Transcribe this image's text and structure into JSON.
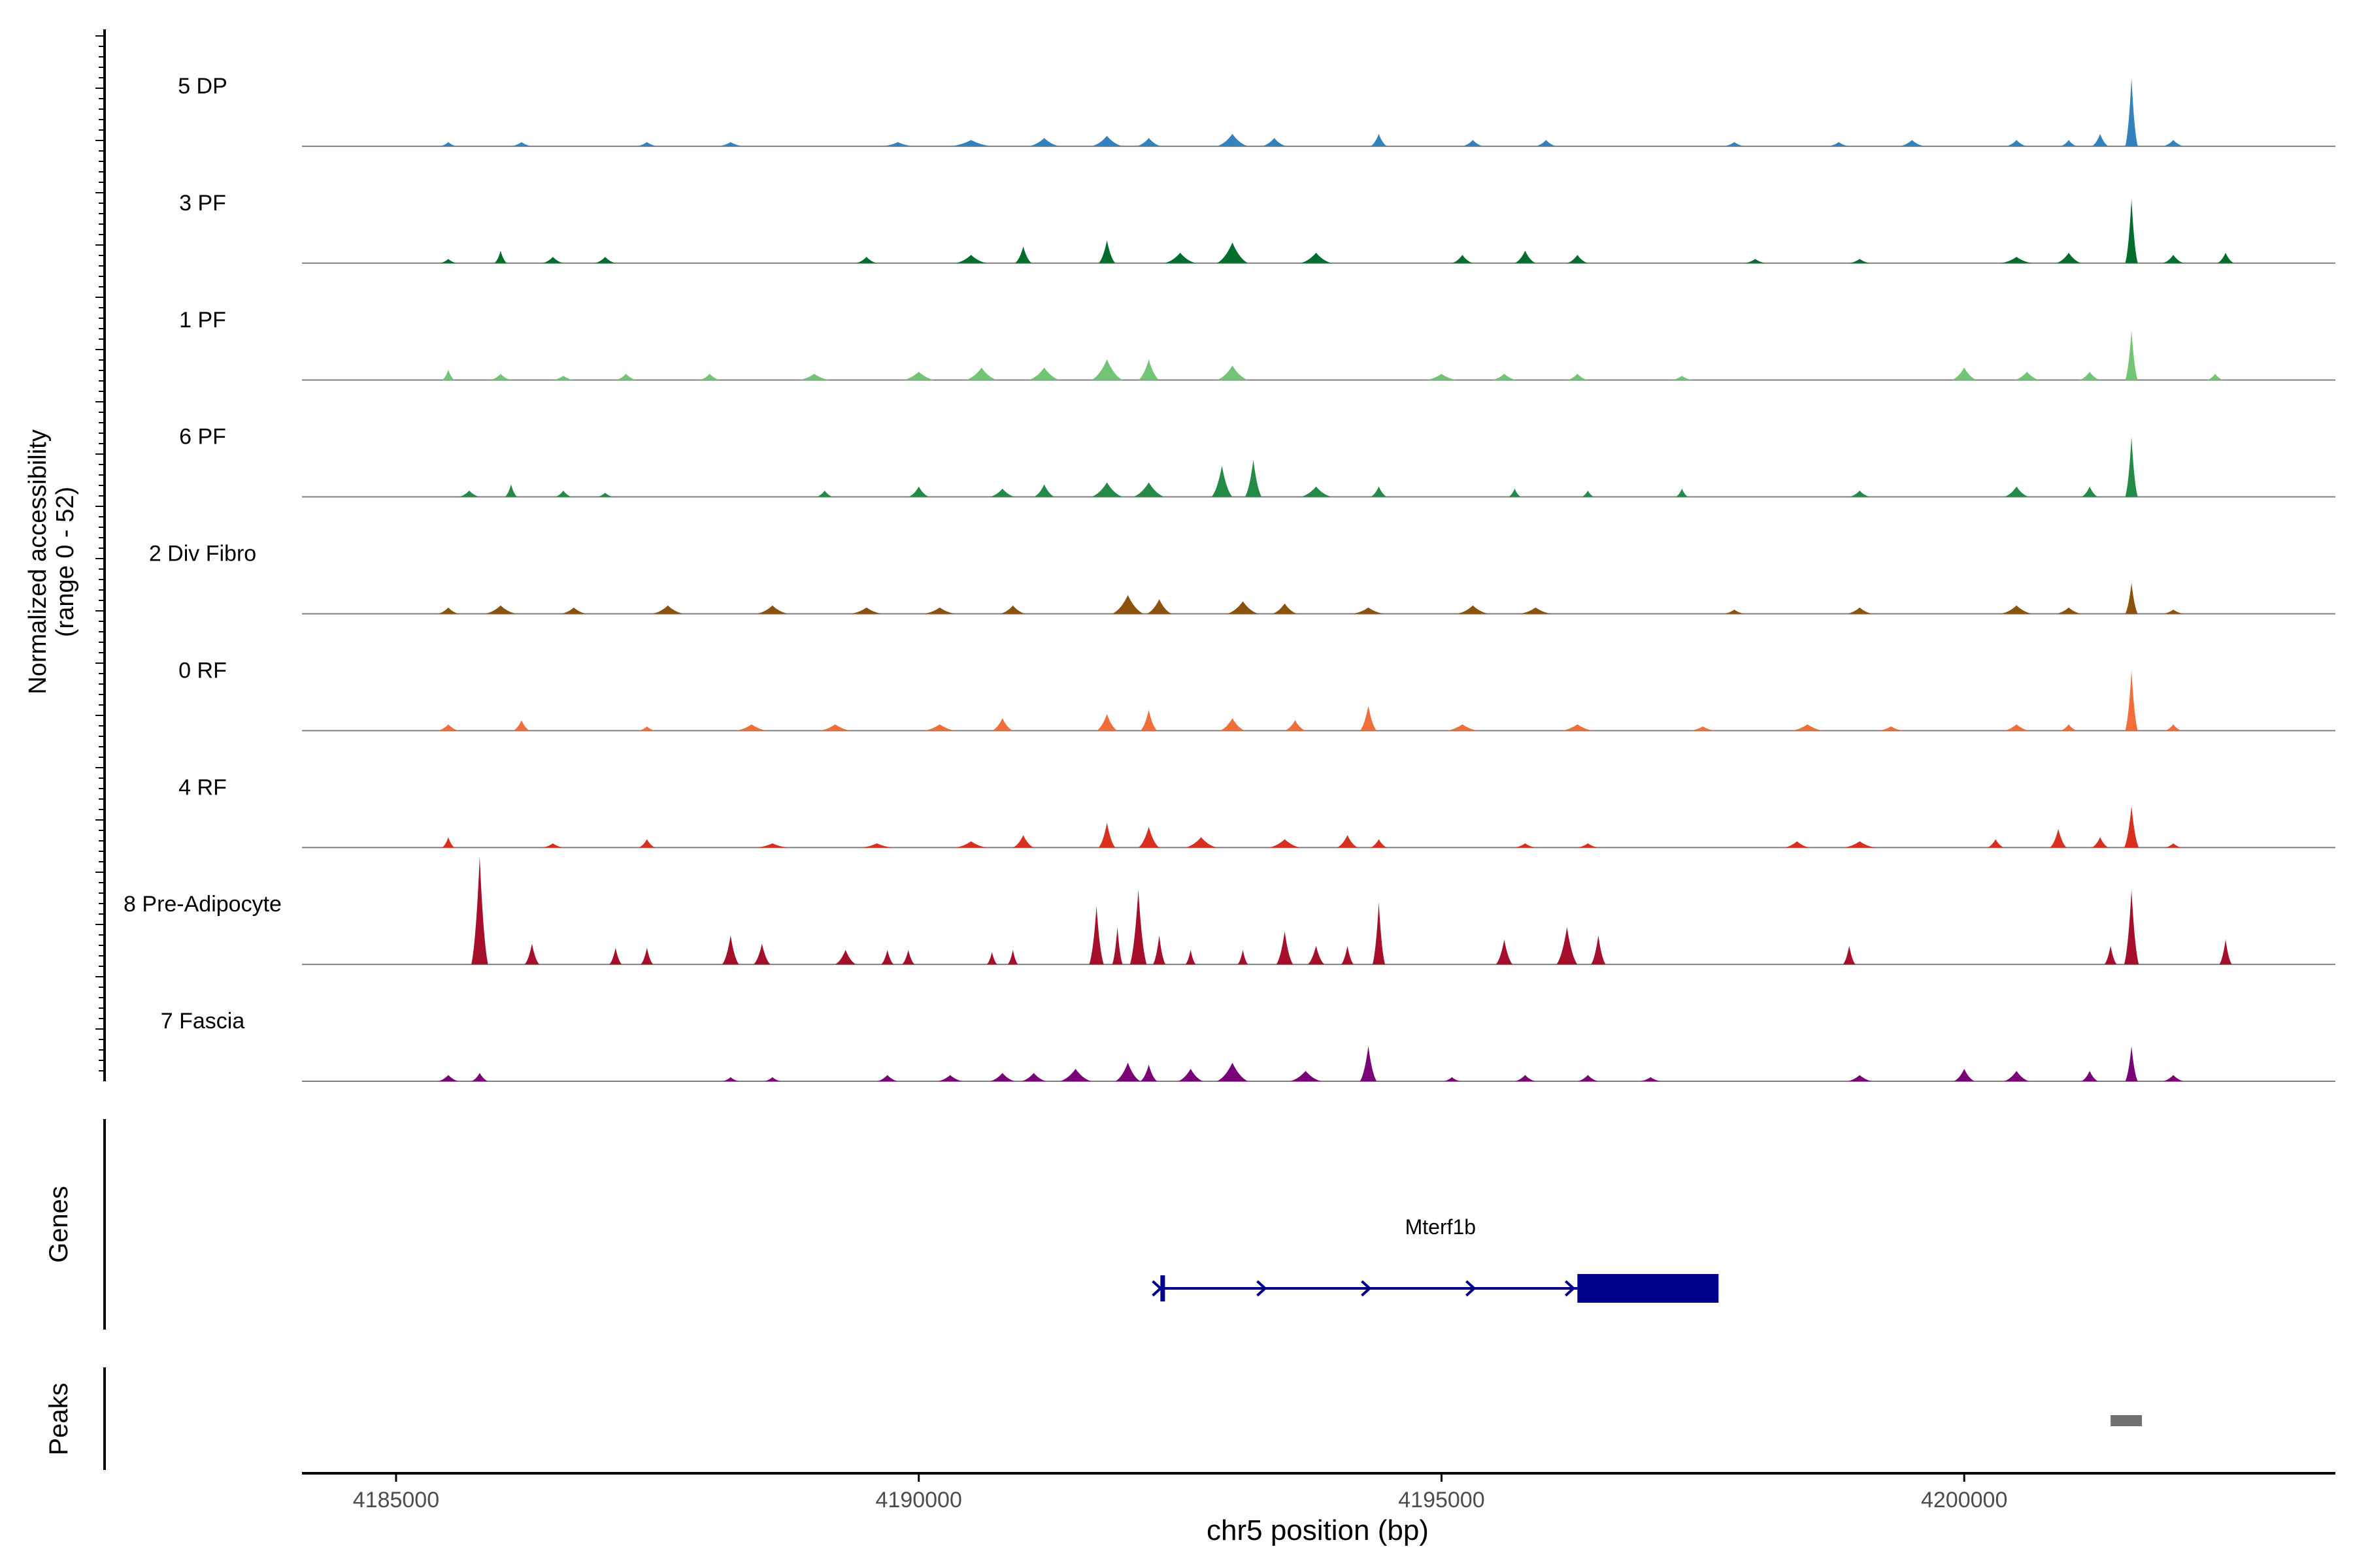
{
  "chart_data": {
    "type": "area",
    "title": "",
    "ylabel_line1": "Normalized accessibility",
    "ylabel_line2": "(range 0 - 52)",
    "xlabel": "chr5 position (bp)",
    "xlim": [
      4184100,
      4203550
    ],
    "ylim": [
      0,
      52
    ],
    "x_ticks": [
      "4185000",
      "4190000",
      "4195000",
      "4200000"
    ],
    "x_tick_values": [
      4185000,
      4190000,
      4195000,
      4200000
    ],
    "genes_label": "Genes",
    "peaks_label": "Peaks",
    "tracks": [
      {
        "name": "5 DP",
        "color": "#3182BD",
        "peaks": [
          [
            4185500,
            2,
            80
          ],
          [
            4186200,
            2,
            100
          ],
          [
            4187400,
            2,
            100
          ],
          [
            4188200,
            2,
            120
          ],
          [
            4189800,
            2,
            150
          ],
          [
            4190500,
            3,
            200
          ],
          [
            4191200,
            4,
            150
          ],
          [
            4191800,
            5,
            150
          ],
          [
            4192200,
            4,
            120
          ],
          [
            4193000,
            6,
            150
          ],
          [
            4193400,
            4,
            120
          ],
          [
            4194400,
            6,
            80
          ],
          [
            4195300,
            3,
            100
          ],
          [
            4196000,
            3,
            100
          ],
          [
            4197800,
            2,
            100
          ],
          [
            4198800,
            2,
            100
          ],
          [
            4199500,
            3,
            120
          ],
          [
            4200500,
            3,
            100
          ],
          [
            4201000,
            3,
            80
          ],
          [
            4201300,
            6,
            80
          ],
          [
            4201600,
            33,
            60
          ],
          [
            4202000,
            3,
            100
          ]
        ]
      },
      {
        "name": "3 PF",
        "color": "#006D2C",
        "peaks": [
          [
            4185500,
            2,
            80
          ],
          [
            4186000,
            6,
            60
          ],
          [
            4186500,
            3,
            100
          ],
          [
            4187000,
            3,
            100
          ],
          [
            4189500,
            3,
            100
          ],
          [
            4190500,
            4,
            150
          ],
          [
            4191000,
            8,
            80
          ],
          [
            4191800,
            11,
            80
          ],
          [
            4192500,
            5,
            150
          ],
          [
            4193000,
            10,
            150
          ],
          [
            4193800,
            5,
            150
          ],
          [
            4195200,
            4,
            100
          ],
          [
            4195800,
            6,
            100
          ],
          [
            4196300,
            4,
            100
          ],
          [
            4198000,
            2,
            100
          ],
          [
            4199000,
            2,
            100
          ],
          [
            4200500,
            3,
            150
          ],
          [
            4201000,
            5,
            120
          ],
          [
            4201600,
            31,
            60
          ],
          [
            4202000,
            4,
            100
          ],
          [
            4202500,
            5,
            80
          ]
        ]
      },
      {
        "name": "1 PF",
        "color": "#74C476",
        "peaks": [
          [
            4185500,
            5,
            60
          ],
          [
            4186000,
            3,
            100
          ],
          [
            4186600,
            2,
            100
          ],
          [
            4187200,
            3,
            100
          ],
          [
            4188000,
            3,
            100
          ],
          [
            4189000,
            3,
            150
          ],
          [
            4190000,
            4,
            150
          ],
          [
            4190600,
            6,
            150
          ],
          [
            4191200,
            6,
            150
          ],
          [
            4191800,
            10,
            150
          ],
          [
            4192200,
            10,
            100
          ],
          [
            4193000,
            7,
            150
          ],
          [
            4195000,
            3,
            150
          ],
          [
            4195600,
            3,
            120
          ],
          [
            4196300,
            3,
            100
          ],
          [
            4197300,
            2,
            100
          ],
          [
            4200000,
            6,
            120
          ],
          [
            4200600,
            4,
            120
          ],
          [
            4201200,
            4,
            100
          ],
          [
            4201600,
            24,
            60
          ],
          [
            4202400,
            3,
            80
          ]
        ]
      },
      {
        "name": "6 PF",
        "color": "#238B45",
        "peaks": [
          [
            4185700,
            3,
            100
          ],
          [
            4186100,
            6,
            60
          ],
          [
            4186600,
            3,
            80
          ],
          [
            4187000,
            2,
            80
          ],
          [
            4189100,
            3,
            80
          ],
          [
            4190000,
            5,
            100
          ],
          [
            4190800,
            4,
            120
          ],
          [
            4191200,
            6,
            100
          ],
          [
            4191800,
            7,
            150
          ],
          [
            4192200,
            7,
            150
          ],
          [
            4192900,
            15,
            100
          ],
          [
            4193200,
            18,
            80
          ],
          [
            4193800,
            5,
            150
          ],
          [
            4194400,
            5,
            80
          ],
          [
            4195700,
            4,
            60
          ],
          [
            4196400,
            3,
            60
          ],
          [
            4197300,
            4,
            60
          ],
          [
            4199000,
            3,
            100
          ],
          [
            4200500,
            5,
            120
          ],
          [
            4201200,
            5,
            80
          ],
          [
            4201600,
            29,
            60
          ]
        ]
      },
      {
        "name": "2 Div Fibro",
        "color": "#8C510A",
        "peaks": [
          [
            4185500,
            3,
            100
          ],
          [
            4186000,
            4,
            150
          ],
          [
            4186700,
            3,
            120
          ],
          [
            4187600,
            4,
            150
          ],
          [
            4188600,
            4,
            150
          ],
          [
            4189500,
            3,
            150
          ],
          [
            4190200,
            3,
            150
          ],
          [
            4190900,
            4,
            120
          ],
          [
            4192000,
            9,
            150
          ],
          [
            4192300,
            7,
            120
          ],
          [
            4193100,
            6,
            150
          ],
          [
            4193500,
            5,
            120
          ],
          [
            4194300,
            3,
            150
          ],
          [
            4195300,
            4,
            150
          ],
          [
            4195900,
            3,
            150
          ],
          [
            4197800,
            2,
            100
          ],
          [
            4199000,
            3,
            120
          ],
          [
            4200500,
            4,
            150
          ],
          [
            4201000,
            3,
            120
          ],
          [
            4201600,
            15,
            60
          ],
          [
            4202000,
            2,
            100
          ]
        ]
      },
      {
        "name": "0 RF",
        "color": "#F16D3A",
        "peaks": [
          [
            4185500,
            3,
            100
          ],
          [
            4186200,
            5,
            80
          ],
          [
            4187400,
            2,
            80
          ],
          [
            4188400,
            3,
            150
          ],
          [
            4189200,
            3,
            150
          ],
          [
            4190200,
            3,
            150
          ],
          [
            4190800,
            6,
            100
          ],
          [
            4191800,
            8,
            100
          ],
          [
            4192200,
            10,
            80
          ],
          [
            4193000,
            6,
            120
          ],
          [
            4193600,
            5,
            100
          ],
          [
            4194300,
            12,
            80
          ],
          [
            4195200,
            3,
            150
          ],
          [
            4196300,
            3,
            150
          ],
          [
            4197500,
            2,
            120
          ],
          [
            4198500,
            3,
            150
          ],
          [
            4199300,
            2,
            120
          ],
          [
            4200500,
            3,
            120
          ],
          [
            4201000,
            3,
            80
          ],
          [
            4201600,
            29,
            60
          ],
          [
            4202000,
            3,
            80
          ]
        ]
      },
      {
        "name": "4 RF",
        "color": "#D7301F",
        "peaks": [
          [
            4185500,
            5,
            60
          ],
          [
            4186500,
            2,
            100
          ],
          [
            4187400,
            4,
            80
          ],
          [
            4188600,
            2,
            150
          ],
          [
            4189600,
            2,
            150
          ],
          [
            4190500,
            3,
            150
          ],
          [
            4191000,
            6,
            100
          ],
          [
            4191800,
            12,
            80
          ],
          [
            4192200,
            10,
            100
          ],
          [
            4192700,
            5,
            150
          ],
          [
            4193500,
            4,
            150
          ],
          [
            4194100,
            6,
            100
          ],
          [
            4194400,
            4,
            80
          ],
          [
            4195800,
            2,
            100
          ],
          [
            4196400,
            2,
            100
          ],
          [
            4198400,
            3,
            120
          ],
          [
            4199000,
            3,
            150
          ],
          [
            4200300,
            4,
            80
          ],
          [
            4200900,
            9,
            80
          ],
          [
            4201300,
            5,
            80
          ],
          [
            4201600,
            20,
            70
          ],
          [
            4202000,
            2,
            80
          ]
        ]
      },
      {
        "name": "8 Pre-Adipocyte",
        "color": "#A50F2B",
        "peaks": [
          [
            4185800,
            52,
            80
          ],
          [
            4186300,
            10,
            70
          ],
          [
            4187100,
            8,
            60
          ],
          [
            4187400,
            8,
            60
          ],
          [
            4188200,
            14,
            80
          ],
          [
            4188500,
            10,
            80
          ],
          [
            4189300,
            7,
            100
          ],
          [
            4189700,
            7,
            60
          ],
          [
            4189900,
            7,
            60
          ],
          [
            4190700,
            6,
            50
          ],
          [
            4190900,
            7,
            50
          ],
          [
            4191700,
            28,
            70
          ],
          [
            4191900,
            18,
            50
          ],
          [
            4192100,
            36,
            80
          ],
          [
            4192300,
            14,
            60
          ],
          [
            4192600,
            7,
            50
          ],
          [
            4193100,
            7,
            50
          ],
          [
            4193500,
            16,
            80
          ],
          [
            4193800,
            9,
            80
          ],
          [
            4194100,
            9,
            60
          ],
          [
            4194400,
            30,
            60
          ],
          [
            4195600,
            12,
            80
          ],
          [
            4196200,
            18,
            100
          ],
          [
            4196500,
            14,
            70
          ],
          [
            4198900,
            9,
            60
          ],
          [
            4201400,
            9,
            60
          ],
          [
            4201600,
            36,
            70
          ],
          [
            4202500,
            12,
            60
          ]
        ]
      },
      {
        "name": "7 Fascia",
        "color": "#7A0177",
        "peaks": [
          [
            4185500,
            3,
            100
          ],
          [
            4185800,
            4,
            80
          ],
          [
            4188200,
            2,
            80
          ],
          [
            4188600,
            2,
            80
          ],
          [
            4189700,
            3,
            100
          ],
          [
            4190300,
            3,
            120
          ],
          [
            4190800,
            4,
            120
          ],
          [
            4191100,
            4,
            120
          ],
          [
            4191500,
            6,
            150
          ],
          [
            4192000,
            9,
            120
          ],
          [
            4192200,
            8,
            80
          ],
          [
            4192600,
            6,
            120
          ],
          [
            4193000,
            9,
            150
          ],
          [
            4193700,
            5,
            150
          ],
          [
            4194300,
            17,
            80
          ],
          [
            4195100,
            2,
            80
          ],
          [
            4195800,
            3,
            100
          ],
          [
            4196400,
            3,
            100
          ],
          [
            4197000,
            2,
            100
          ],
          [
            4199000,
            3,
            120
          ],
          [
            4200000,
            6,
            100
          ],
          [
            4200500,
            5,
            120
          ],
          [
            4201200,
            5,
            80
          ],
          [
            4201600,
            17,
            60
          ],
          [
            4202000,
            3,
            100
          ]
        ]
      }
    ],
    "gene": {
      "name": "Mterf1b",
      "start": 4192330,
      "end": 4197650,
      "thick_start": 4196300,
      "arrow_positions": [
        4192300,
        4193300,
        4194300,
        4195300,
        4196250
      ]
    },
    "peak_region": {
      "start": 4201400,
      "end": 4201700
    }
  }
}
